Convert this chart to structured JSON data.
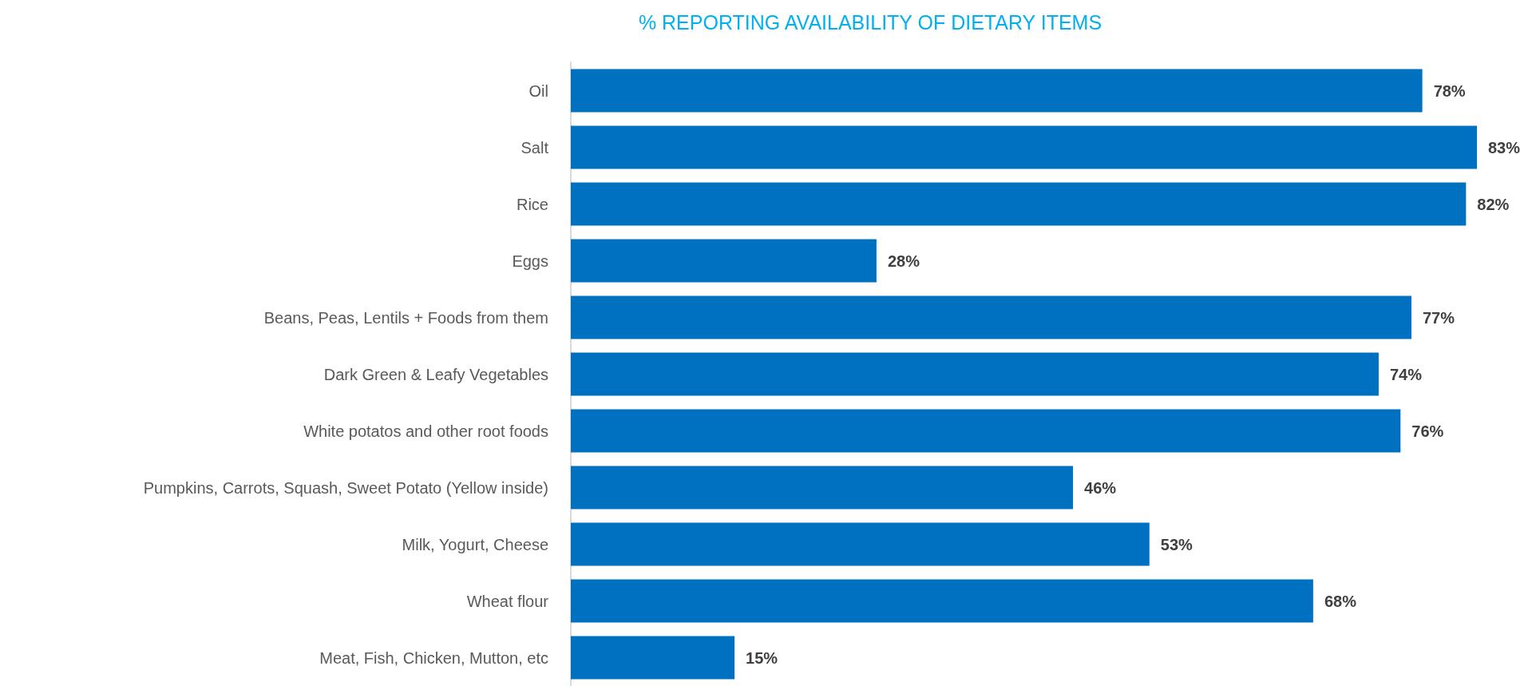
{
  "chart_data": {
    "type": "bar",
    "orientation": "horizontal",
    "title": "% REPORTING AVAILABILITY OF DIETARY ITEMS",
    "categories": [
      "Oil",
      "Salt",
      "Rice",
      "Eggs",
      "Beans, Peas, Lentils + Foods from them",
      "Dark Green & Leafy Vegetables",
      "White potatos and other root foods",
      "Pumpkins, Carrots, Squash, Sweet Potato (Yellow inside)",
      "Milk, Yogurt, Cheese",
      "Wheat flour",
      "Meat, Fish, Chicken, Mutton, etc"
    ],
    "values": [
      78,
      83,
      82,
      28,
      77,
      74,
      76,
      46,
      53,
      68,
      15
    ],
    "value_labels": [
      "78%",
      "83%",
      "82%",
      "28%",
      "77%",
      "74%",
      "76%",
      "46%",
      "53%",
      "68%",
      "15%"
    ],
    "color": "#0070c0"
  }
}
